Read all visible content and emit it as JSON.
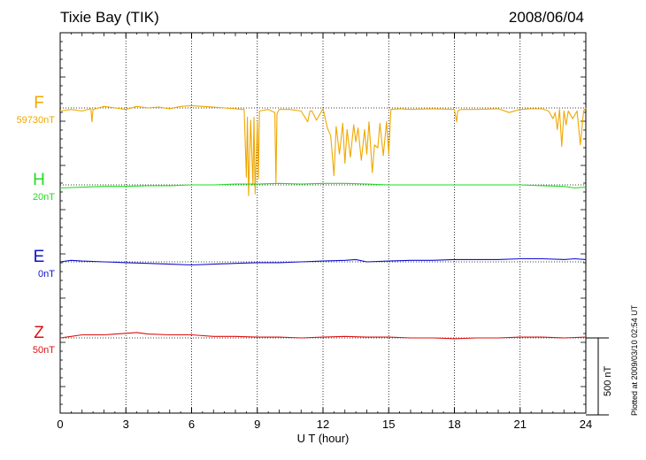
{
  "header": {
    "station": "Tixie Bay (TIK)",
    "date": "2008/06/04"
  },
  "footer": {
    "plotted_at": "Plotted at 2009/03/10 02:54 UT",
    "scale_label": "500 nT"
  },
  "chart_data": {
    "type": "line",
    "xlabel": "U T (hour)",
    "xlim": [
      0,
      24
    ],
    "x_ticks": [
      0,
      3,
      6,
      9,
      12,
      15,
      18,
      21,
      24
    ],
    "scale_bar_nT": 500,
    "grid": true,
    "series": [
      {
        "name": "F",
        "baseline_label": "59730nT",
        "color": "#f0a800",
        "x": [
          0,
          0.5,
          1,
          1.4,
          1.45,
          1.5,
          2,
          2.5,
          3,
          3.5,
          4,
          4.5,
          5,
          5.5,
          6,
          6.5,
          7,
          7.5,
          8,
          8.4,
          8.5,
          8.55,
          8.6,
          8.7,
          8.8,
          8.85,
          8.9,
          9.0,
          9.05,
          9.1,
          9.5,
          9.8,
          9.85,
          9.9,
          10,
          10.5,
          11,
          11.3,
          11.4,
          11.5,
          11.7,
          12,
          12.2,
          12.35,
          12.5,
          12.6,
          12.75,
          12.9,
          13.0,
          13.1,
          13.25,
          13.4,
          13.5,
          13.6,
          13.75,
          13.9,
          14.0,
          14.1,
          14.25,
          14.35,
          14.5,
          14.6,
          14.75,
          14.9,
          15.0,
          15.1,
          15.5,
          16,
          17,
          18,
          18.1,
          18.15,
          18.3,
          19,
          20,
          20.5,
          21,
          21.5,
          22,
          22.3,
          22.5,
          22.6,
          22.7,
          22.8,
          22.9,
          23.0,
          23.1,
          23.2,
          23.4,
          23.6,
          23.75,
          23.9,
          24
        ],
        "y": [
          -20,
          -10,
          -20,
          -5,
          -90,
          -10,
          10,
          0,
          -10,
          10,
          0,
          5,
          -5,
          10,
          15,
          10,
          5,
          0,
          -5,
          -10,
          -450,
          -60,
          -570,
          -80,
          -500,
          -60,
          -560,
          -90,
          -460,
          -20,
          -10,
          -30,
          -490,
          -40,
          -10,
          -10,
          -20,
          -90,
          -20,
          -20,
          -80,
          -5,
          -130,
          -180,
          -440,
          -120,
          -300,
          -100,
          -360,
          -140,
          -320,
          -110,
          -220,
          -130,
          -340,
          -140,
          -300,
          -90,
          -420,
          -240,
          -260,
          -100,
          -310,
          -90,
          -300,
          -10,
          -5,
          -10,
          -5,
          -10,
          -90,
          -20,
          -10,
          -10,
          -5,
          -30,
          -10,
          -5,
          -5,
          -20,
          -70,
          -30,
          -140,
          -10,
          -250,
          -20,
          -110,
          -20,
          -70,
          -20,
          -240,
          -20,
          0
        ]
      },
      {
        "name": "H",
        "baseline_label": "20nT",
        "color": "#22dd22",
        "x": [
          0,
          1,
          2,
          3,
          4,
          5,
          6,
          7,
          8,
          9,
          10,
          11,
          12,
          13,
          14,
          15,
          16,
          17,
          18,
          19,
          20,
          21,
          22,
          23,
          23.5,
          24
        ],
        "y": [
          -20,
          -15,
          -10,
          -10,
          -5,
          -5,
          0,
          0,
          5,
          5,
          10,
          5,
          10,
          10,
          5,
          0,
          0,
          0,
          0,
          0,
          0,
          0,
          -5,
          -10,
          -20,
          -15
        ]
      },
      {
        "name": "E",
        "baseline_label": "0nT",
        "color": "#1010cc",
        "x": [
          0,
          0.5,
          1,
          2,
          3,
          4,
          5,
          6,
          7,
          8,
          9,
          10,
          11,
          12,
          13,
          13.5,
          14,
          15,
          16,
          17,
          18,
          19,
          20,
          21,
          22,
          23,
          23.5,
          24
        ],
        "y": [
          0,
          10,
          5,
          0,
          -5,
          -10,
          -15,
          -20,
          -15,
          -10,
          -5,
          -5,
          0,
          5,
          10,
          15,
          0,
          5,
          10,
          10,
          15,
          15,
          15,
          20,
          20,
          15,
          20,
          15
        ]
      },
      {
        "name": "Z",
        "baseline_label": "50nT",
        "color": "#dd1111",
        "x": [
          0,
          0.5,
          1,
          2,
          3,
          3.5,
          4,
          5,
          6,
          7,
          8,
          9,
          10,
          11,
          12,
          13,
          14,
          15,
          16,
          17,
          18,
          19,
          20,
          21,
          22,
          23,
          24
        ],
        "y": [
          0,
          10,
          20,
          20,
          30,
          35,
          25,
          20,
          20,
          10,
          10,
          5,
          5,
          0,
          5,
          10,
          5,
          5,
          0,
          0,
          -5,
          0,
          0,
          5,
          5,
          0,
          5
        ]
      }
    ]
  }
}
